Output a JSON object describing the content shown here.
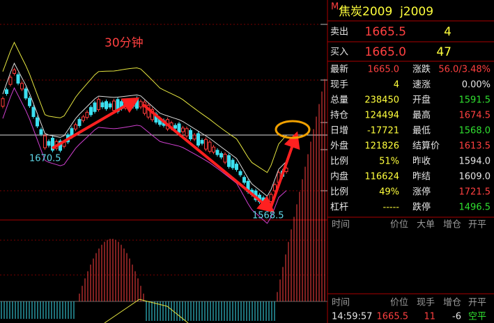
{
  "chart": {
    "period": "30分钟",
    "high_label": "1670.5",
    "low_label": "1568.5"
  },
  "header": {
    "marker": "M",
    "title": "焦炭2009  j2009"
  },
  "orders": [
    [
      "卖出",
      "1665.5",
      "4"
    ],
    [
      "买入",
      "1665.0",
      "47"
    ]
  ],
  "quotes": [
    [
      "最新",
      "1665.0",
      "涨跌",
      "56.0/3.48%"
    ],
    [
      "现手",
      "4",
      "速涨",
      "0.00%"
    ],
    [
      "总量",
      "238450",
      "开盘",
      "1591.5"
    ],
    [
      "持仓",
      "124494",
      "最高",
      "1674.5"
    ],
    [
      "日增",
      "-17721",
      "最低",
      "1568.0"
    ],
    [
      "外盘",
      "121826",
      "结算价",
      "1613.5"
    ],
    [
      "比例",
      "51%",
      "昨收",
      "1594.0"
    ],
    [
      "内盘",
      "116624",
      "昨结",
      "1609.0"
    ],
    [
      "比例",
      "49%",
      "涨停",
      "1721.5"
    ],
    [
      "杠杆",
      "-----",
      "跌停",
      "1496.5"
    ]
  ],
  "ticks_header": [
    "时间",
    "价位",
    "大单",
    "增仓",
    "开平"
  ],
  "trades_header": [
    "时间",
    "价位",
    "现手",
    "增仓",
    "开平"
  ],
  "trades": [
    [
      "14:59:57",
      "1665.5",
      "11",
      "-6",
      "空平"
    ]
  ]
}
